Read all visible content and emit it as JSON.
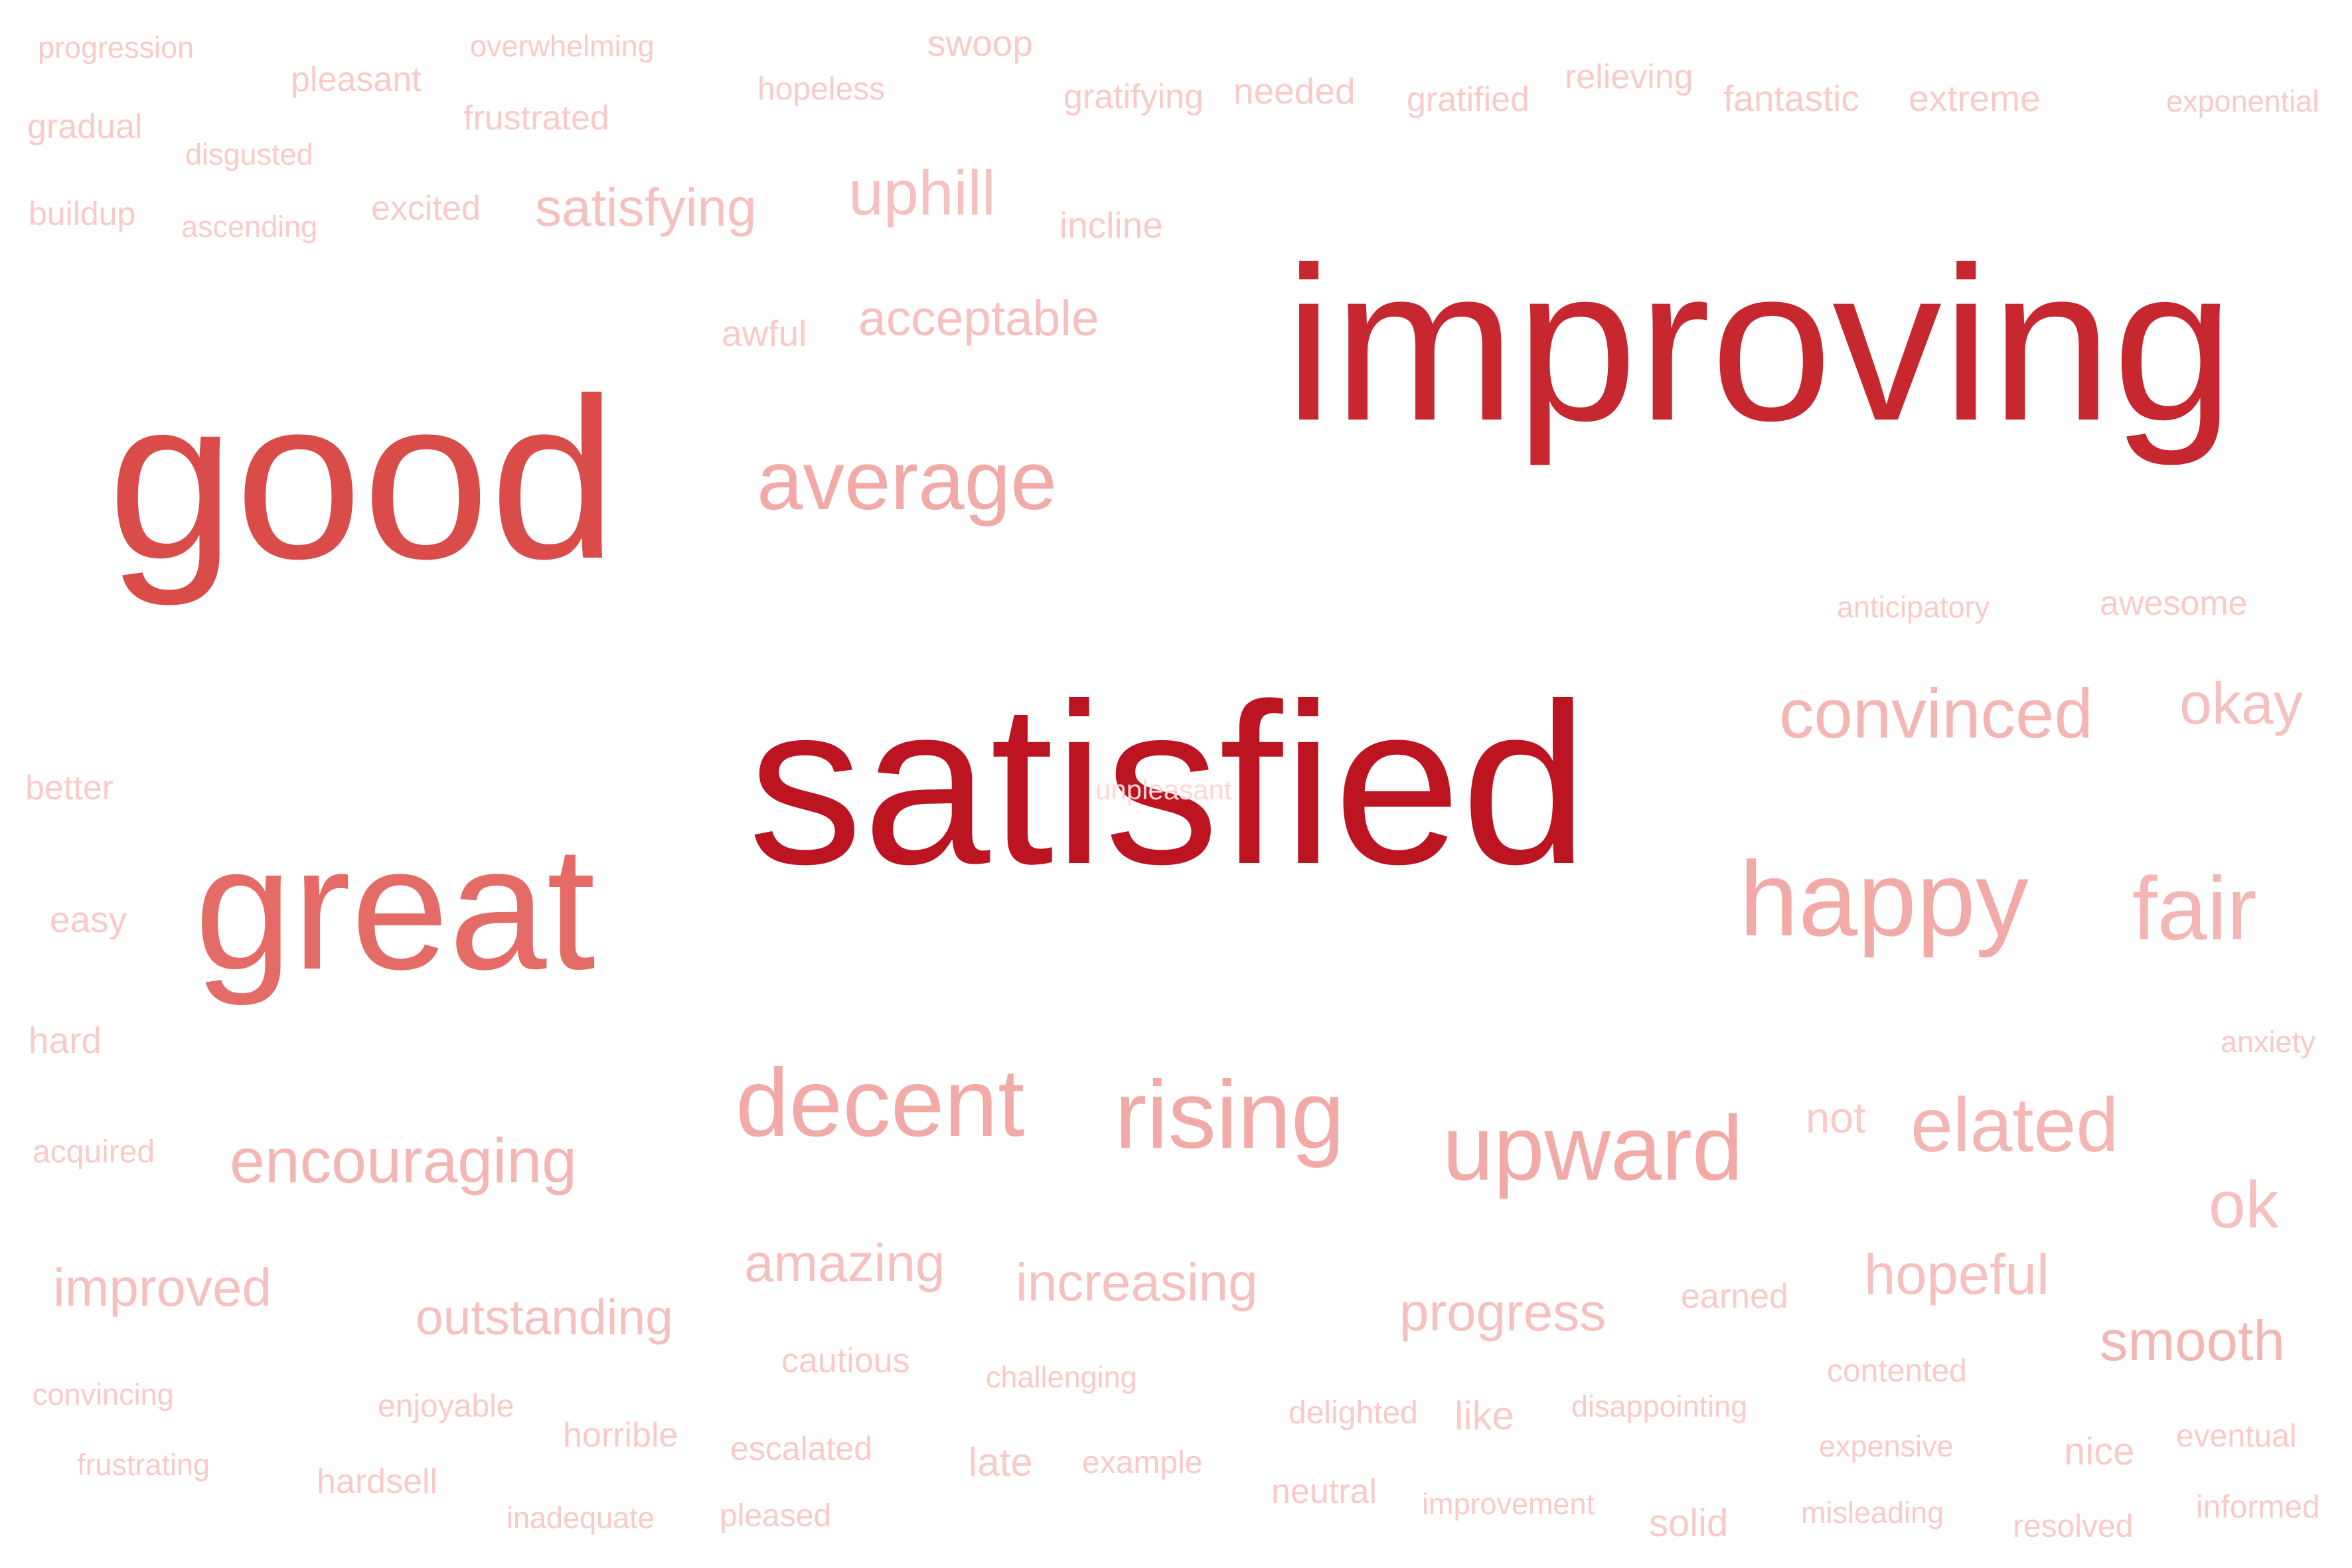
{
  "words": [
    {
      "text": "progression",
      "color": "#f8cac8"
    },
    {
      "text": "pleasant",
      "color": "#f8cac8"
    },
    {
      "text": "overwhelming",
      "color": "#f8cac8"
    },
    {
      "text": "swoop",
      "color": "#f8cac8"
    },
    {
      "text": "gradual",
      "color": "#f8cac8"
    },
    {
      "text": "disgusted",
      "color": "#f8cac8"
    },
    {
      "text": "frustrated",
      "color": "#f8cac8"
    },
    {
      "text": "hopeless",
      "color": "#f8cac8"
    },
    {
      "text": "gratifying",
      "color": "#f8cac8"
    },
    {
      "text": "needed",
      "color": "#f8cac8"
    },
    {
      "text": "gratified",
      "color": "#f8cac8"
    },
    {
      "text": "relieving",
      "color": "#f8cac8"
    },
    {
      "text": "fantastic",
      "color": "#f8cac8"
    },
    {
      "text": "extreme",
      "color": "#f8cac8"
    },
    {
      "text": "exponential",
      "color": "#f8cac8"
    },
    {
      "text": "buildup",
      "color": "#f8cac8"
    },
    {
      "text": "ascending",
      "color": "#f8cac8"
    },
    {
      "text": "excited",
      "color": "#f8cac8"
    },
    {
      "text": "satisfying",
      "color": "#f6c0be"
    },
    {
      "text": "uphill",
      "color": "#f6c0be"
    },
    {
      "text": "incline",
      "color": "#f8cac8"
    },
    {
      "text": "awful",
      "color": "#f8cac8"
    },
    {
      "text": "acceptable",
      "color": "#f6c0be"
    },
    {
      "text": "improving",
      "color": "#c7272f"
    },
    {
      "text": "good",
      "color": "#d94c49"
    },
    {
      "text": "average",
      "color": "#f2aaa7"
    },
    {
      "text": "anticipatory",
      "color": "#f8cac8"
    },
    {
      "text": "awesome",
      "color": "#f8cac8"
    },
    {
      "text": "convinced",
      "color": "#f4b6b3"
    },
    {
      "text": "okay",
      "color": "#f6c0be"
    },
    {
      "text": "better",
      "color": "#f8cac8"
    },
    {
      "text": "satisfied",
      "color": "#bc1421"
    },
    {
      "text": "unpleasant",
      "color": "#fbd8d6"
    },
    {
      "text": "great",
      "color": "#e56b66"
    },
    {
      "text": "easy",
      "color": "#f8cac8"
    },
    {
      "text": "happy",
      "color": "#f2aaa7"
    },
    {
      "text": "fair",
      "color": "#f4b6b3"
    },
    {
      "text": "hard",
      "color": "#f8cac8"
    },
    {
      "text": "anxiety",
      "color": "#f8cac8"
    },
    {
      "text": "decent",
      "color": "#f2aaa7"
    },
    {
      "text": "rising",
      "color": "#f2aaa7"
    },
    {
      "text": "upward",
      "color": "#f2aaa7"
    },
    {
      "text": "not",
      "color": "#f8cac8"
    },
    {
      "text": "elated",
      "color": "#f4b6b3"
    },
    {
      "text": "acquired",
      "color": "#f8cac8"
    },
    {
      "text": "encouraging",
      "color": "#f4b6b3"
    },
    {
      "text": "ok",
      "color": "#f6c0be"
    },
    {
      "text": "improved",
      "color": "#f6c0be"
    },
    {
      "text": "amazing",
      "color": "#f6c0be"
    },
    {
      "text": "increasing",
      "color": "#f6c0be"
    },
    {
      "text": "hopeful",
      "color": "#f6c0be"
    },
    {
      "text": "outstanding",
      "color": "#f6c0be"
    },
    {
      "text": "progress",
      "color": "#f6c0be"
    },
    {
      "text": "earned",
      "color": "#f8cac8"
    },
    {
      "text": "smooth",
      "color": "#f4b6b3"
    },
    {
      "text": "cautious",
      "color": "#f8cac8"
    },
    {
      "text": "challenging",
      "color": "#f8cac8"
    },
    {
      "text": "contented",
      "color": "#f8cac8"
    },
    {
      "text": "convincing",
      "color": "#f8cac8"
    },
    {
      "text": "enjoyable",
      "color": "#f8cac8"
    },
    {
      "text": "horrible",
      "color": "#f8cac8"
    },
    {
      "text": "delighted",
      "color": "#f8cac8"
    },
    {
      "text": "like",
      "color": "#f8cac8"
    },
    {
      "text": "disappointing",
      "color": "#f8cac8"
    },
    {
      "text": "eventual",
      "color": "#f8cac8"
    },
    {
      "text": "frustrating",
      "color": "#f8cac8"
    },
    {
      "text": "escalated",
      "color": "#f8cac8"
    },
    {
      "text": "late",
      "color": "#f8cac8"
    },
    {
      "text": "example",
      "color": "#f8cac8"
    },
    {
      "text": "expensive",
      "color": "#f8cac8"
    },
    {
      "text": "nice",
      "color": "#f8cac8"
    },
    {
      "text": "hardsell",
      "color": "#f8cac8"
    },
    {
      "text": "neutral",
      "color": "#f8cac8"
    },
    {
      "text": "improvement",
      "color": "#f8cac8"
    },
    {
      "text": "informed",
      "color": "#f8cac8"
    },
    {
      "text": "inadequate",
      "color": "#f8cac8"
    },
    {
      "text": "pleased",
      "color": "#f8cac8"
    },
    {
      "text": "solid",
      "color": "#f8cac8"
    },
    {
      "text": "misleading",
      "color": "#f8cac8"
    },
    {
      "text": "resolved",
      "color": "#f8cac8"
    }
  ]
}
